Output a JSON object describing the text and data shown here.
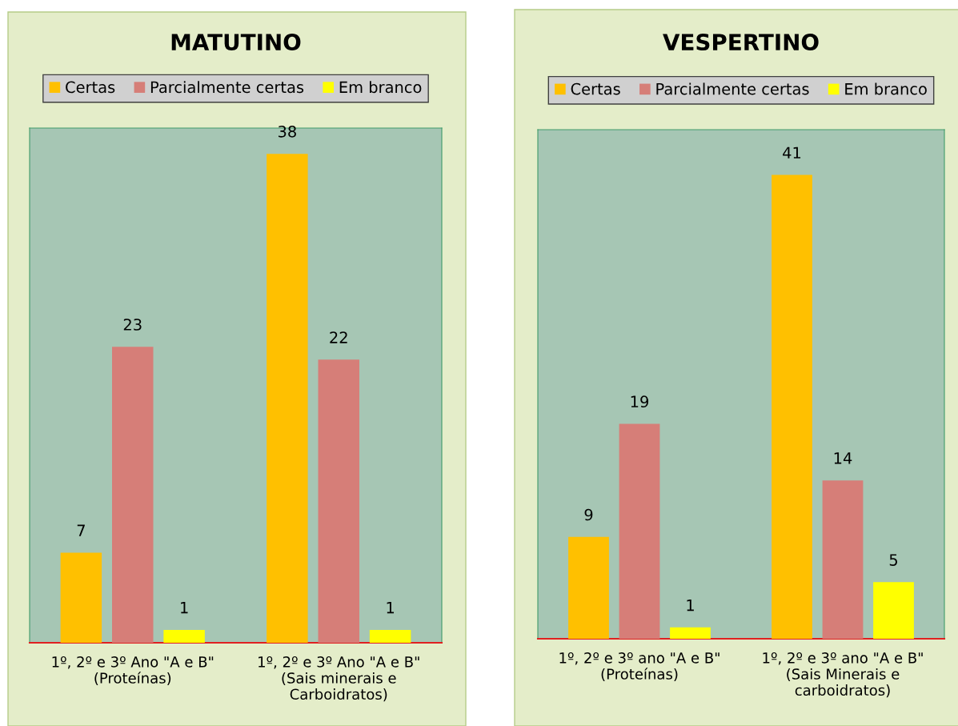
{
  "chart_data": [
    {
      "type": "bar",
      "title": "MATUTINO",
      "categories": [
        "1º, 2º e 3º Ano \"A e B\"\n(Proteínas)",
        "1º, 2º e 3º Ano \"A e B\"\n(Sais minerais e\nCarboidratos)"
      ],
      "series": [
        {
          "name": "Certas",
          "color": "#ffc000",
          "values": [
            7,
            38
          ]
        },
        {
          "name": "Parcialmente certas",
          "color": "#d67e78",
          "values": [
            23,
            22
          ]
        },
        {
          "name": "Em branco",
          "color": "#ffff00",
          "values": [
            1,
            1
          ]
        }
      ],
      "ylim": [
        0,
        40
      ],
      "data_labels": true,
      "legend": "top",
      "tick_labels": "x",
      "grid": false
    },
    {
      "type": "bar",
      "title": "VESPERTINO",
      "categories": [
        "1º, 2º e 3º ano \"A e B\"\n(Proteínas)",
        "1º, 2º e 3º ano \"A e B\"\n(Sais Minerais e\ncarboidratos)"
      ],
      "series": [
        {
          "name": "Certas",
          "color": "#ffc000",
          "values": [
            9,
            41
          ]
        },
        {
          "name": "Parcialmente certas",
          "color": "#d67e78",
          "values": [
            19,
            14
          ]
        },
        {
          "name": "Em branco",
          "color": "#ffff00",
          "values": [
            1,
            5
          ]
        }
      ],
      "ylim": [
        0,
        45
      ],
      "data_labels": true,
      "legend": "top",
      "tick_labels": "x",
      "grid": false
    }
  ]
}
